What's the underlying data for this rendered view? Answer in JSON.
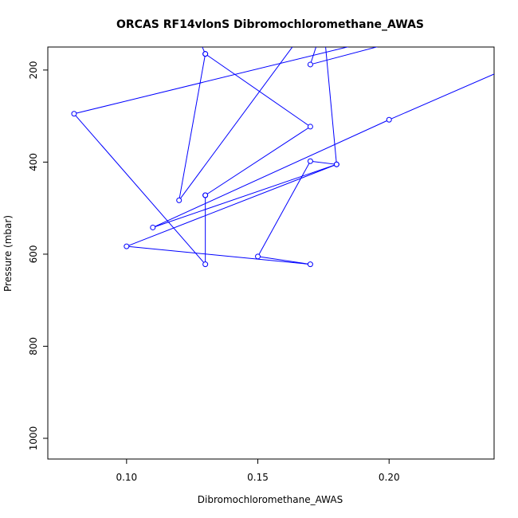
{
  "chart_data": {
    "type": "line",
    "title": "ORCAS RF14vlonS Dibromochloromethane_AWAS",
    "xlabel": "Dibromochloromethane_AWAS",
    "ylabel": "Pressure (mbar)",
    "xlim": [
      0.07,
      0.24
    ],
    "ylim": [
      1045,
      150
    ],
    "y_reversed": true,
    "x_ticks": [
      0.1,
      0.15,
      0.2
    ],
    "x_tick_labels": [
      "0.10",
      "0.15",
      "0.20"
    ],
    "y_ticks": [
      200,
      400,
      600,
      800,
      1000
    ],
    "y_tick_labels": [
      "200",
      "400",
      "600",
      "800",
      "1000"
    ],
    "grid": false,
    "line_color": "#0000ff",
    "marker": "open-circle",
    "series": [
      {
        "x": [
          0.235,
          0.17,
          0.175,
          0.18,
          0.17,
          0.15,
          0.17,
          0.1,
          0.18,
          0.11,
          0.2,
          0.3
        ],
        "y": [
          90,
          188,
          100,
          405,
          398,
          605,
          622,
          583,
          405,
          542,
          308,
          60
        ]
      },
      {
        "x": [
          0.22,
          0.08,
          0.13,
          0.13,
          0.13,
          0.17,
          0.13,
          0.12,
          0.18
        ],
        "y": [
          100,
          295,
          622,
          472,
          472,
          323,
          165,
          483,
          20
        ]
      },
      {
        "x": [
          0.13,
          0.125
        ],
        "y": [
          165,
          100
        ]
      }
    ]
  }
}
